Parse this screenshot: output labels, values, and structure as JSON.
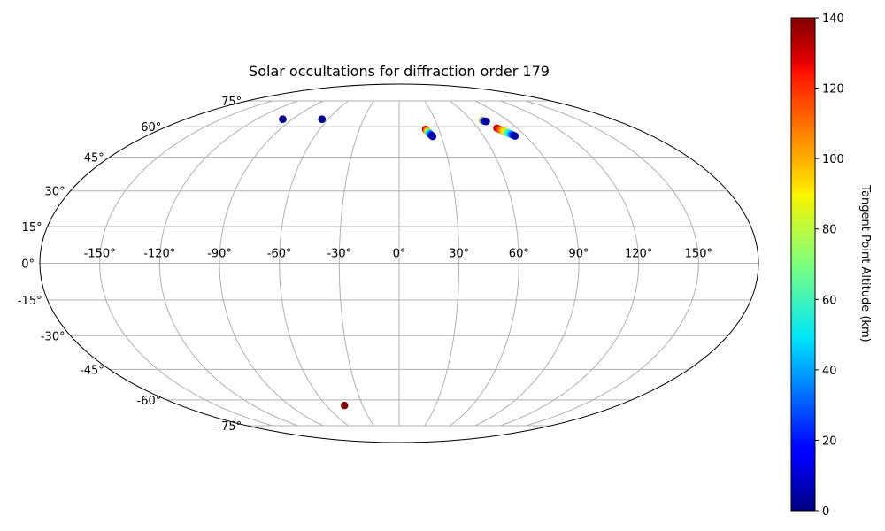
{
  "chart_data": {
    "type": "scatter",
    "projection": "mollweide",
    "title": "Solar occultations for diffraction order 179",
    "grid": true,
    "xlim": [
      -180,
      180
    ],
    "ylim": [
      -90,
      90
    ],
    "lon_ticks": [
      -150,
      -120,
      -90,
      -60,
      -30,
      0,
      30,
      60,
      90,
      120,
      150
    ],
    "lon_tick_labels": [
      "-150°",
      "-120°",
      "-90°",
      "-60°",
      "-30°",
      "0°",
      "30°",
      "60°",
      "90°",
      "120°",
      "150°"
    ],
    "lat_ticks": [
      -75,
      -60,
      -45,
      -30,
      -15,
      0,
      15,
      30,
      45,
      60,
      75
    ],
    "lat_tick_labels": [
      "-75°",
      "-60°",
      "-45°",
      "-30°",
      "-15°",
      "0°",
      "15°",
      "30°",
      "45°",
      "60°",
      "75°"
    ],
    "colorbar": {
      "label": "Tangent Point Altitude (km)",
      "colormap": "jet",
      "min": 0,
      "max": 140,
      "ticks": [
        0,
        20,
        40,
        60,
        80,
        100,
        120,
        140
      ]
    },
    "points": [
      {
        "lon": -98,
        "lat": 64,
        "alt": 5
      },
      {
        "lon": -98,
        "lat": 64,
        "alt": 2
      },
      {
        "lon": -65,
        "lat": 64,
        "alt": 5
      },
      {
        "lon": -65,
        "lat": 64,
        "alt": 2
      },
      {
        "lon": -45,
        "lat": -63,
        "alt": 140
      },
      {
        "lon": 20,
        "lat": 58.6,
        "alt": 130
      },
      {
        "lon": 20.4,
        "lat": 58.2,
        "alt": 115
      },
      {
        "lon": 20.8,
        "lat": 57.8,
        "alt": 100
      },
      {
        "lon": 21.2,
        "lat": 57.4,
        "alt": 85
      },
      {
        "lon": 21.6,
        "lat": 57.0,
        "alt": 70
      },
      {
        "lon": 22.0,
        "lat": 56.6,
        "alt": 55
      },
      {
        "lon": 22.4,
        "lat": 56.2,
        "alt": 40
      },
      {
        "lon": 22.8,
        "lat": 55.8,
        "alt": 28
      },
      {
        "lon": 23.3,
        "lat": 55.4,
        "alt": 15
      },
      {
        "lon": 23.8,
        "lat": 55.0,
        "alt": 5
      },
      {
        "lon": 69,
        "lat": 63.2,
        "alt": 100
      },
      {
        "lon": 69.8,
        "lat": 63.0,
        "alt": 40
      },
      {
        "lon": 70.6,
        "lat": 62.9,
        "alt": 15
      },
      {
        "lon": 71.5,
        "lat": 62.8,
        "alt": 3
      },
      {
        "lon": 74.5,
        "lat": 59.2,
        "alt": 130
      },
      {
        "lon": 75.3,
        "lat": 58.8,
        "alt": 120
      },
      {
        "lon": 76.1,
        "lat": 58.4,
        "alt": 110
      },
      {
        "lon": 76.9,
        "lat": 58.0,
        "alt": 100
      },
      {
        "lon": 77.7,
        "lat": 57.6,
        "alt": 90
      },
      {
        "lon": 78.5,
        "lat": 57.2,
        "alt": 80
      },
      {
        "lon": 79.3,
        "lat": 56.8,
        "alt": 65
      },
      {
        "lon": 80.1,
        "lat": 56.4,
        "alt": 50
      },
      {
        "lon": 80.9,
        "lat": 56.0,
        "alt": 35
      },
      {
        "lon": 81.7,
        "lat": 55.6,
        "alt": 20
      },
      {
        "lon": 82.5,
        "lat": 55.2,
        "alt": 5
      }
    ]
  }
}
